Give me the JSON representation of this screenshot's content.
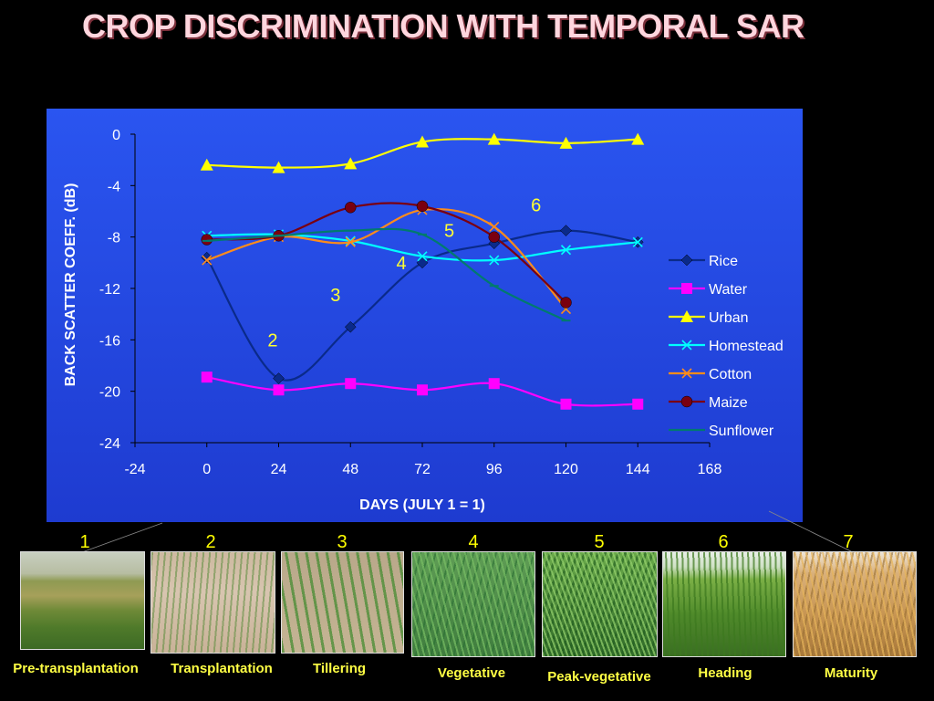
{
  "title": "CROP DISCRIMINATION WITH TEMPORAL SAR",
  "colors": {
    "page_background": "#000000",
    "title": "#FFD6DE",
    "plot_background": "#2244DD",
    "stage_text": "#FFFF44"
  },
  "chart_data": {
    "type": "line",
    "title": "",
    "xlabel": "DAYS  (JULY 1 = 1)",
    "ylabel": "BACK SCATTER COEFF. (dB)",
    "xlim": [
      -24,
      168
    ],
    "ylim": [
      -24,
      0
    ],
    "xticks": [
      "-24",
      "0",
      "24",
      "48",
      "72",
      "96",
      "120",
      "144",
      "168"
    ],
    "yticks": [
      "0",
      "-4",
      "-8",
      "-12",
      "-16",
      "-20",
      "-24"
    ],
    "grid": false,
    "legend_position": "right",
    "series": [
      {
        "name": "Rice",
        "color": "#0A2A8A",
        "marker": "diamond",
        "x": [
          0,
          24,
          48,
          72,
          96,
          120,
          144
        ],
        "y": [
          -9.6,
          -19.0,
          -15.0,
          -10.0,
          -8.5,
          -7.5,
          -8.4
        ]
      },
      {
        "name": "Water",
        "color": "#FF00FF",
        "marker": "square",
        "x": [
          0,
          24,
          48,
          72,
          96,
          120,
          144
        ],
        "y": [
          -18.9,
          -19.9,
          -19.4,
          -19.9,
          -19.4,
          -21.0,
          -21.0
        ]
      },
      {
        "name": "Urban",
        "color": "#FFFF00",
        "marker": "triangle",
        "x": [
          0,
          24,
          48,
          72,
          96,
          120,
          144
        ],
        "y": [
          -2.4,
          -2.6,
          -2.3,
          -0.6,
          -0.4,
          -0.7,
          -0.4
        ]
      },
      {
        "name": "Homestead",
        "color": "#00FFFF",
        "marker": "x",
        "x": [
          0,
          24,
          48,
          72,
          96,
          120,
          144
        ],
        "y": [
          -7.9,
          -7.8,
          -8.3,
          -9.5,
          -9.8,
          -9.0,
          -8.4
        ]
      },
      {
        "name": "Cotton",
        "color": "#FF8C1A",
        "marker": "x",
        "x": [
          0,
          24,
          48,
          72,
          96,
          120
        ],
        "y": [
          -9.8,
          -8.0,
          -8.4,
          -5.9,
          -7.2,
          -13.6
        ]
      },
      {
        "name": "Maize",
        "color": "#7A0010",
        "marker": "circle",
        "x": [
          0,
          24,
          48,
          72,
          96,
          120
        ],
        "y": [
          -8.2,
          -7.9,
          -5.7,
          -5.6,
          -8.0,
          -13.1
        ]
      },
      {
        "name": "Sunflower",
        "color": "#007A6E",
        "marker": "dash",
        "x": [
          0,
          24,
          48,
          72,
          96,
          120
        ],
        "y": [
          -8.3,
          -7.9,
          -7.5,
          -7.8,
          -11.8,
          -14.5
        ]
      }
    ],
    "annotations": [
      {
        "text": "2",
        "x": 22,
        "y": -16.5
      },
      {
        "text": "3",
        "x": 43,
        "y": -13.0
      },
      {
        "text": "4",
        "x": 65,
        "y": -10.5
      },
      {
        "text": "5",
        "x": 81,
        "y": -8.0
      },
      {
        "text": "6",
        "x": 110,
        "y": -6.0
      }
    ]
  },
  "stages": [
    {
      "number": "1",
      "label": "Pre-transplantation",
      "photo": "sparse-green-field"
    },
    {
      "number": "2",
      "label": "Transplantation",
      "photo": "flooded-seedlings"
    },
    {
      "number": "3",
      "label": "Tillering",
      "photo": "young-tillers"
    },
    {
      "number": "4",
      "label": "Vegetative",
      "photo": "green-leaves"
    },
    {
      "number": "5",
      "label": "Peak-vegetative",
      "photo": "dense-green-leaves"
    },
    {
      "number": "6",
      "label": "Heading",
      "photo": "heading-plants"
    },
    {
      "number": "7",
      "label": "Maturity",
      "photo": "golden-mature-plants"
    }
  ]
}
